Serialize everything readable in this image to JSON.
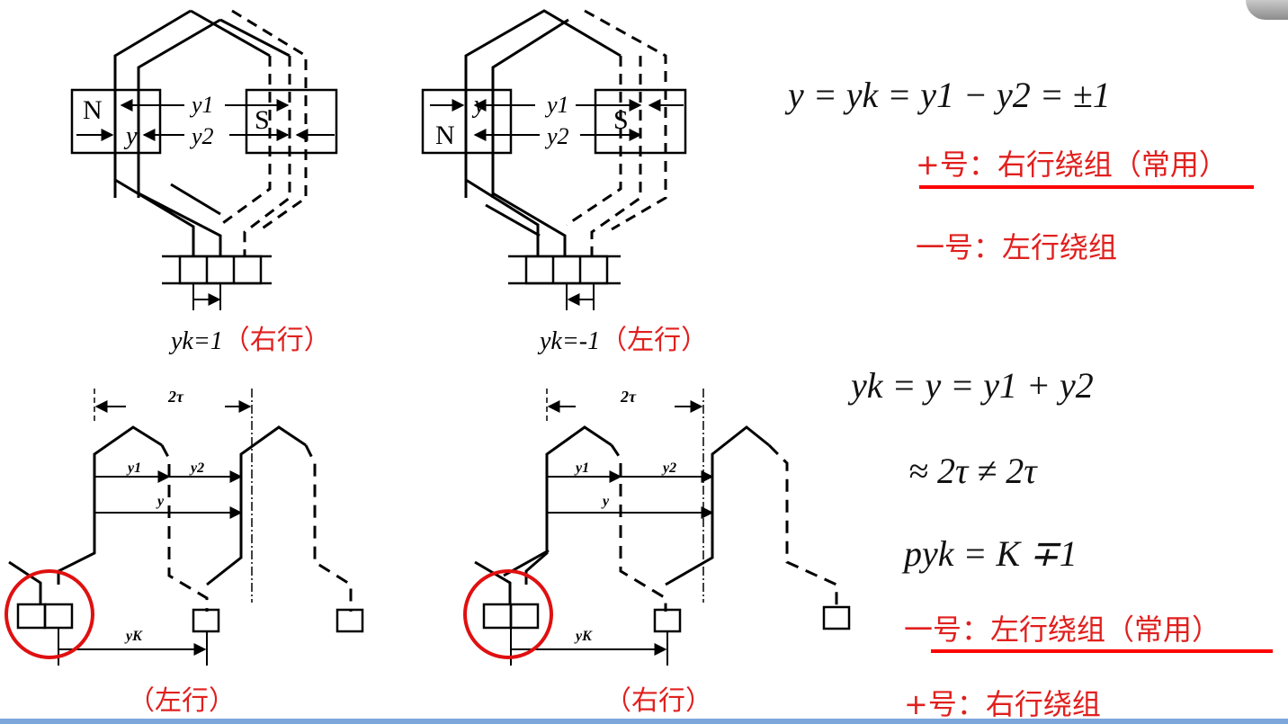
{
  "top_left": {
    "labels": {
      "N": "N",
      "S": "S",
      "y1": "y1",
      "y2": "y2",
      "y": "y"
    },
    "caption_math": "yk=1",
    "caption_cn": "（右行）"
  },
  "top_middle": {
    "labels": {
      "N": "N",
      "S": "S",
      "y1": "y1",
      "y2": "y2",
      "y": "y"
    },
    "caption_math": "yk=-1",
    "caption_cn": "（左行）"
  },
  "bottom_left": {
    "labels": {
      "two_tau": "2τ",
      "y1": "y1",
      "y2": "y2",
      "y": "y",
      "yK": "yK"
    },
    "caption": "（左行）"
  },
  "bottom_middle": {
    "labels": {
      "two_tau": "2τ",
      "y1": "y1",
      "y2": "y2",
      "y": "y",
      "yK": "yK"
    },
    "caption": "（右行）"
  },
  "equations": {
    "eq1": "y = yk = y1 − y2 = ±1",
    "note_plus_common": "+号：右行绕组（常用）",
    "note_minus": "一号：左行绕组",
    "eq2": "yk = y = y1 + y2",
    "eq3": "≈ 2τ ≠ 2τ",
    "eq4": "pyk = K ∓1",
    "note_minus_common": "一号：左行绕组（常用）",
    "note_plus": "+号：右行绕组"
  },
  "colors": {
    "accent": "#e0201e",
    "underline": "#ff0000",
    "circle": "#e01010",
    "bottom_bar": "#7da7db"
  }
}
